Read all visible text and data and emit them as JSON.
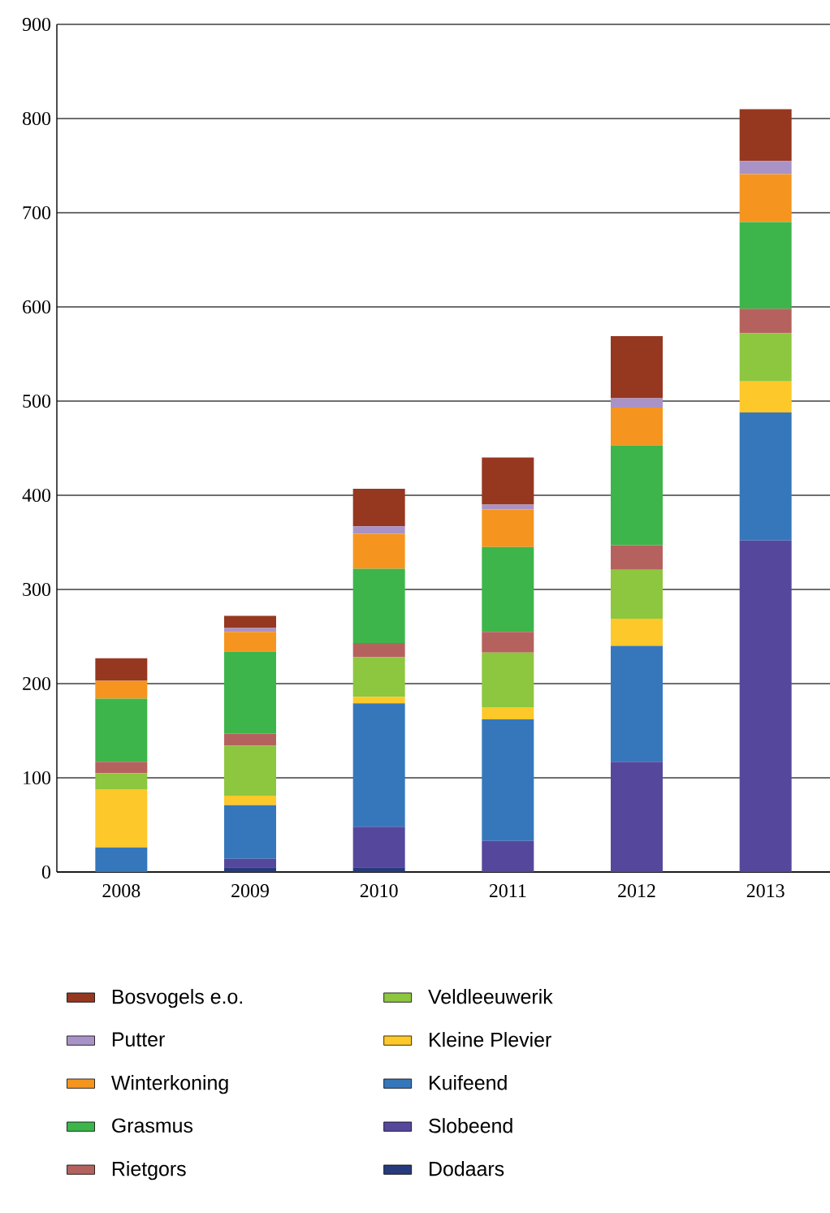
{
  "chart_data": {
    "type": "bar",
    "stacked": true,
    "categories": [
      "2008",
      "2009",
      "2010",
      "2011",
      "2012",
      "2013"
    ],
    "ylim": [
      0,
      900
    ],
    "yticks": [
      0,
      100,
      200,
      300,
      400,
      500,
      600,
      700,
      800,
      900
    ],
    "grid": "y",
    "legend": "bottom",
    "series": [
      {
        "name": "Dodaars",
        "color": "#273a7d",
        "values": [
          0,
          5,
          5,
          0,
          0,
          0
        ]
      },
      {
        "name": "Slobeend",
        "color": "#55489c",
        "values": [
          0,
          9,
          43,
          33,
          117,
          352
        ]
      },
      {
        "name": "Kuifeend",
        "color": "#3677bc",
        "values": [
          26,
          57,
          131,
          129,
          123,
          136
        ]
      },
      {
        "name": "Kleine Plevier",
        "color": "#fdc82a",
        "values": [
          62,
          10,
          7,
          13,
          29,
          33
        ]
      },
      {
        "name": "Veldleeuwerik",
        "color": "#8dc63f",
        "values": [
          17,
          53,
          42,
          58,
          52,
          51
        ]
      },
      {
        "name": "Rietgors",
        "color": "#b5625f",
        "values": [
          12,
          13,
          15,
          22,
          26,
          26
        ]
      },
      {
        "name": "Grasmus",
        "color": "#3db54a",
        "values": [
          67,
          87,
          79,
          90,
          106,
          92
        ]
      },
      {
        "name": "Winterkoning",
        "color": "#f5951f",
        "values": [
          19,
          21,
          37,
          40,
          40,
          51
        ]
      },
      {
        "name": "Putter",
        "color": "#a993c6",
        "values": [
          0,
          4,
          8,
          5,
          10,
          14
        ]
      },
      {
        "name": "Bosvogels e.o.",
        "color": "#963720",
        "values": [
          24,
          13,
          40,
          50,
          66,
          55
        ]
      }
    ]
  }
}
